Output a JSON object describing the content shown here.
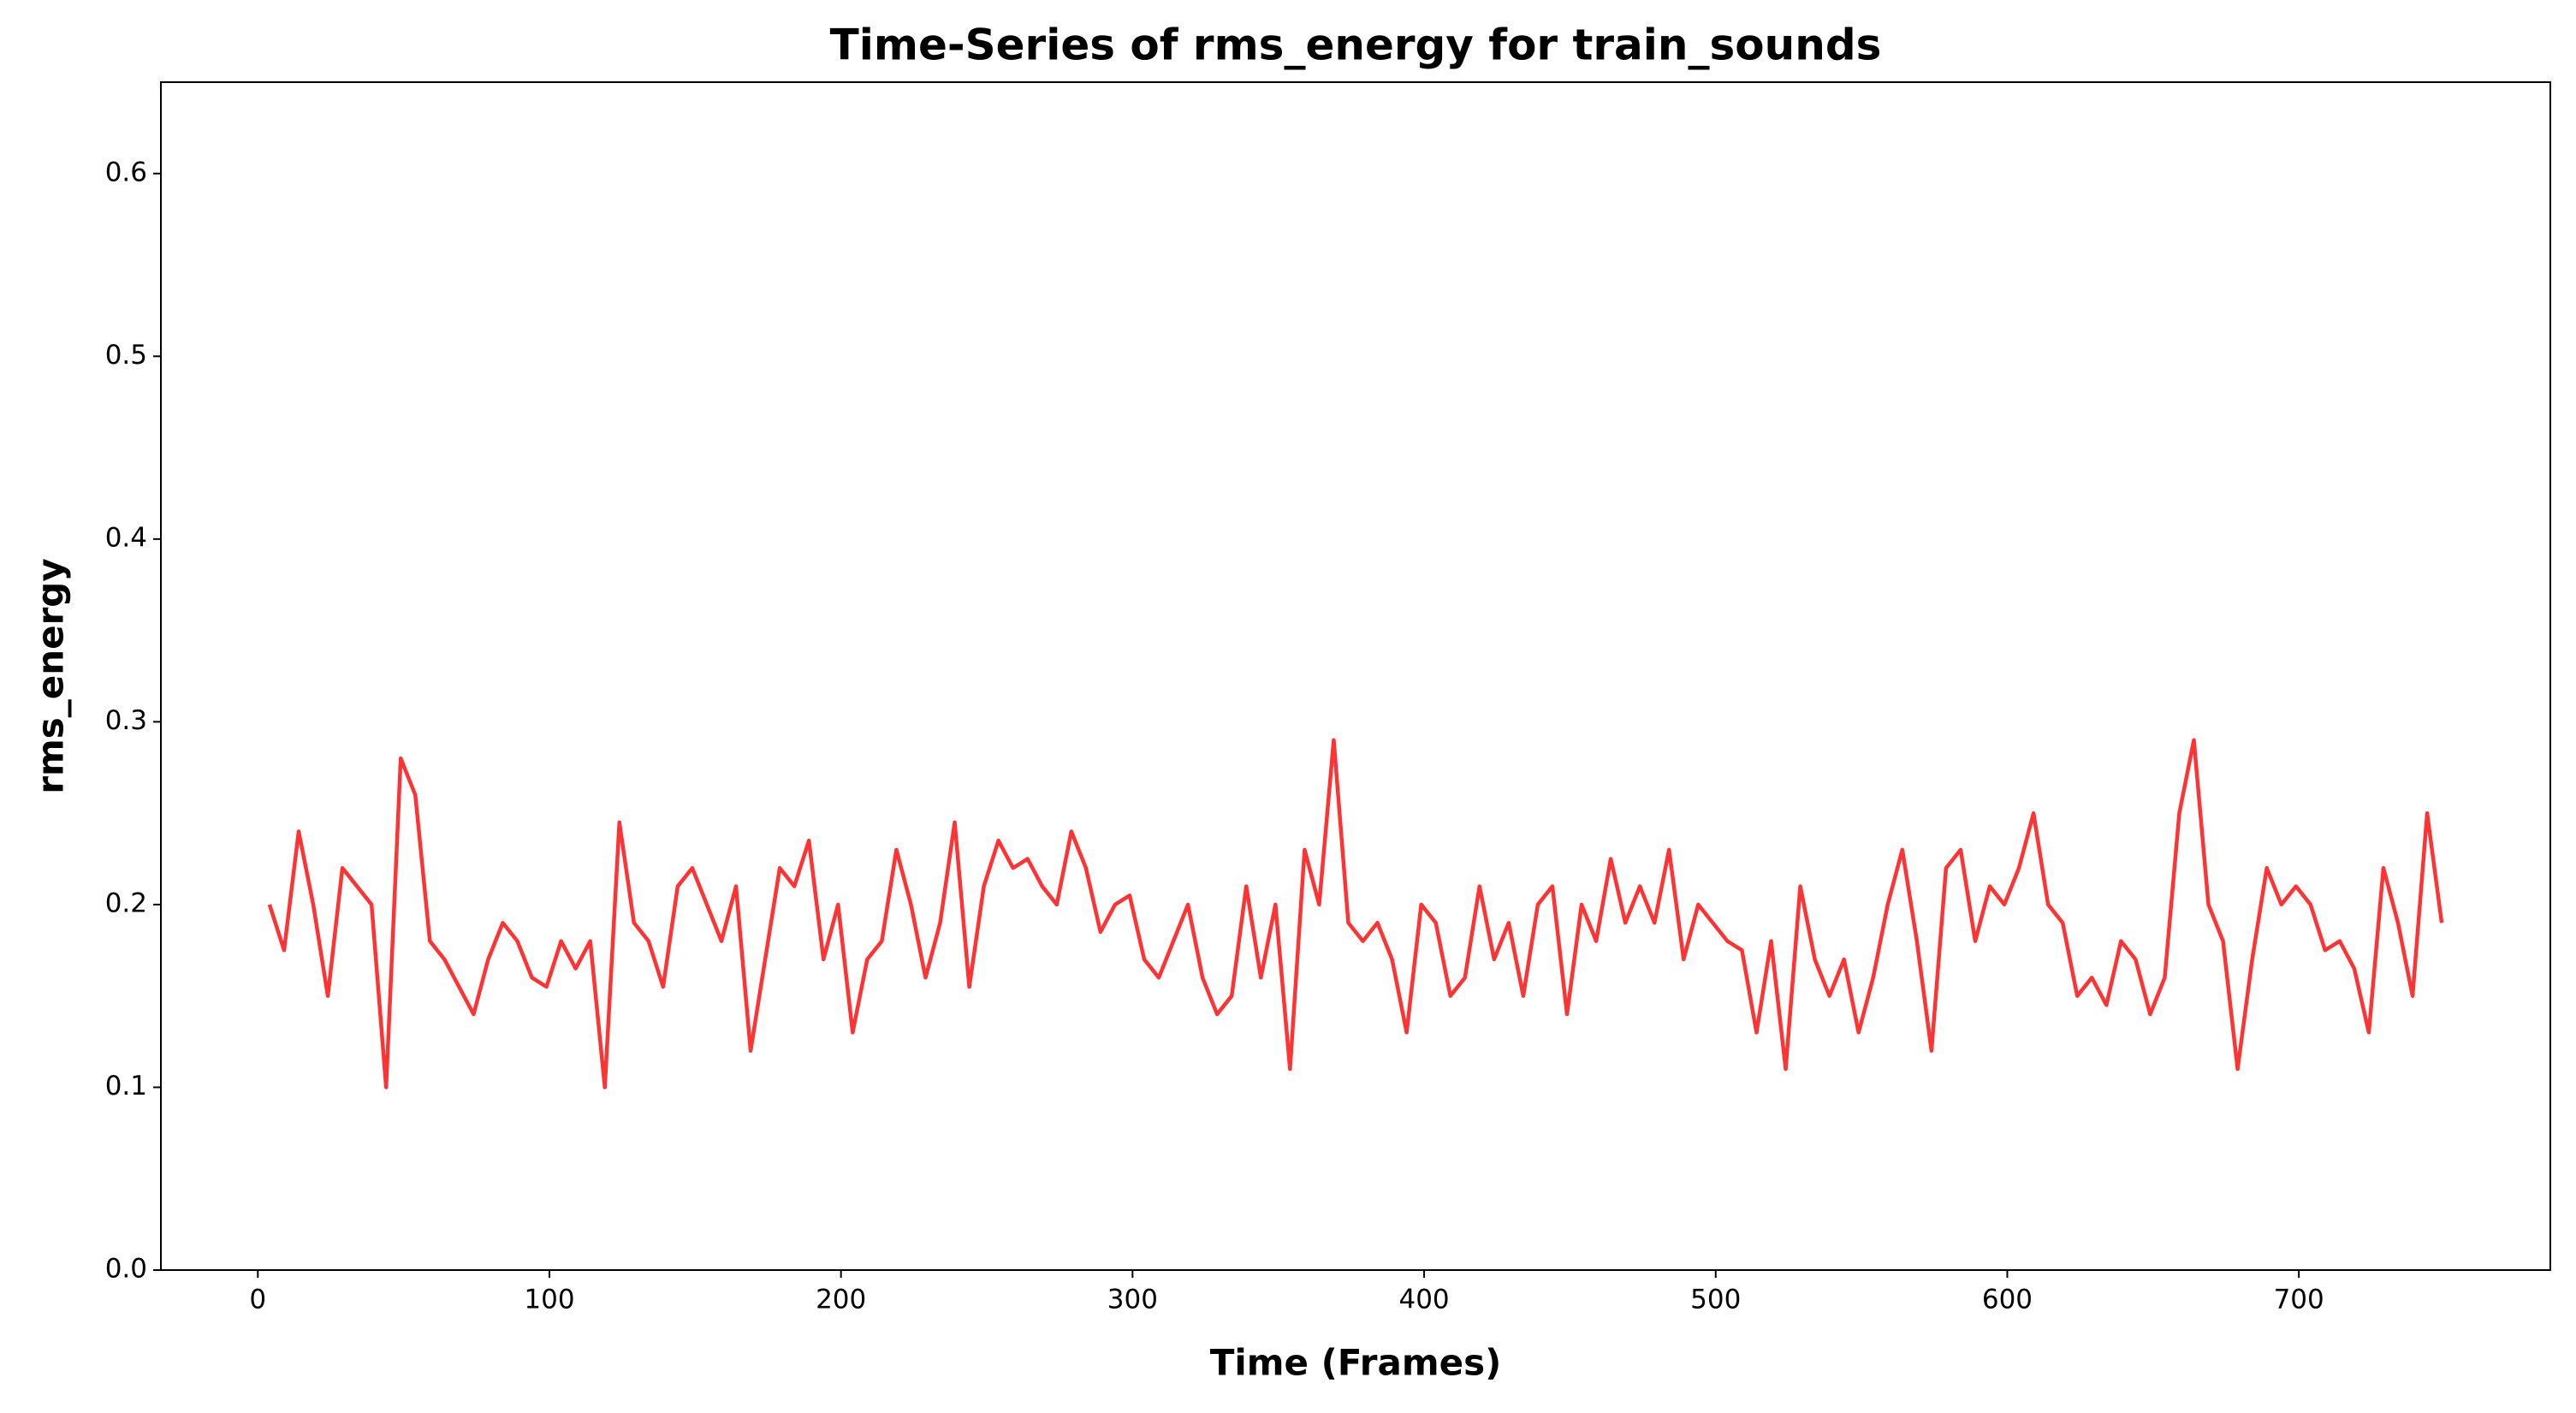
{
  "chart_data": {
    "type": "line",
    "title": "Time-Series of rms_energy for train_sounds",
    "xlabel": "Time (Frames)",
    "ylabel": "rms_energy",
    "x": [
      4,
      9,
      14,
      19,
      24,
      29,
      34,
      39,
      44,
      49,
      54,
      59,
      64,
      69,
      74,
      79,
      84,
      89,
      94,
      99,
      104,
      109,
      114,
      119,
      124,
      129,
      134,
      139,
      144,
      149,
      154,
      159,
      164,
      169,
      174,
      179,
      184,
      189,
      194,
      199,
      204,
      209,
      214,
      219,
      224,
      229,
      234,
      239,
      244,
      249,
      254,
      259,
      264,
      269,
      274,
      279,
      284,
      289,
      294,
      299,
      304,
      309,
      314,
      319,
      324,
      329,
      334,
      339,
      344,
      349,
      354,
      359,
      364,
      369,
      374,
      379,
      384,
      389,
      394,
      399,
      404,
      409,
      414,
      419,
      424,
      429,
      434,
      439,
      444,
      449,
      454,
      459,
      464,
      469,
      474,
      479,
      484,
      489,
      494,
      499,
      504,
      509,
      514,
      519,
      524,
      529,
      534,
      539,
      544,
      549,
      554,
      559,
      564,
      569,
      574,
      579,
      584,
      589,
      594,
      599,
      604,
      609,
      614,
      619,
      624,
      629,
      634,
      639,
      644,
      649,
      654,
      659,
      664,
      669,
      674,
      679,
      684,
      689,
      694,
      699,
      704,
      709,
      714,
      719,
      724,
      729,
      734,
      739,
      744,
      749
    ],
    "series": [
      {
        "name": "rms_energy",
        "color": "#ff3333",
        "values": [
          0.2,
          0.175,
          0.24,
          0.2,
          0.15,
          0.22,
          0.21,
          0.2,
          0.1,
          0.28,
          0.26,
          0.18,
          0.17,
          0.155,
          0.14,
          0.17,
          0.19,
          0.18,
          0.16,
          0.155,
          0.18,
          0.165,
          0.18,
          0.1,
          0.245,
          0.19,
          0.18,
          0.155,
          0.21,
          0.22,
          0.2,
          0.18,
          0.21,
          0.12,
          0.17,
          0.22,
          0.21,
          0.235,
          0.17,
          0.2,
          0.13,
          0.17,
          0.18,
          0.23,
          0.2,
          0.16,
          0.19,
          0.245,
          0.155,
          0.21,
          0.235,
          0.22,
          0.225,
          0.21,
          0.2,
          0.24,
          0.22,
          0.185,
          0.2,
          0.205,
          0.17,
          0.16,
          0.18,
          0.2,
          0.16,
          0.14,
          0.15,
          0.21,
          0.16,
          0.2,
          0.11,
          0.23,
          0.2,
          0.29,
          0.19,
          0.18,
          0.19,
          0.17,
          0.13,
          0.2,
          0.19,
          0.15,
          0.16,
          0.21,
          0.17,
          0.19,
          0.15,
          0.2,
          0.21,
          0.14,
          0.2,
          0.18,
          0.225,
          0.19,
          0.21,
          0.19,
          0.23,
          0.17,
          0.2,
          0.19,
          0.18,
          0.175,
          0.13,
          0.18,
          0.11,
          0.21,
          0.17,
          0.15,
          0.17,
          0.13,
          0.16,
          0.2,
          0.23,
          0.18,
          0.12,
          0.22,
          0.23,
          0.18,
          0.21,
          0.2,
          0.22,
          0.25,
          0.2,
          0.19,
          0.15,
          0.16,
          0.145,
          0.18,
          0.17,
          0.14,
          0.16,
          0.25,
          0.29,
          0.2,
          0.18,
          0.11,
          0.17,
          0.22,
          0.2,
          0.21,
          0.2,
          0.175,
          0.18,
          0.165,
          0.13,
          0.22,
          0.19,
          0.15,
          0.25,
          0.19
        ]
      }
    ],
    "xlim": [
      -33.25,
      786.25
    ],
    "ylim": [
      0,
      0.65
    ],
    "xticks": [
      0,
      100,
      200,
      300,
      400,
      500,
      600,
      700
    ],
    "yticks": [
      {
        "value": 0,
        "label": "0.0"
      },
      0.1,
      0.2,
      0.3,
      0.4,
      0.5,
      0.6
    ],
    "grid": false
  }
}
